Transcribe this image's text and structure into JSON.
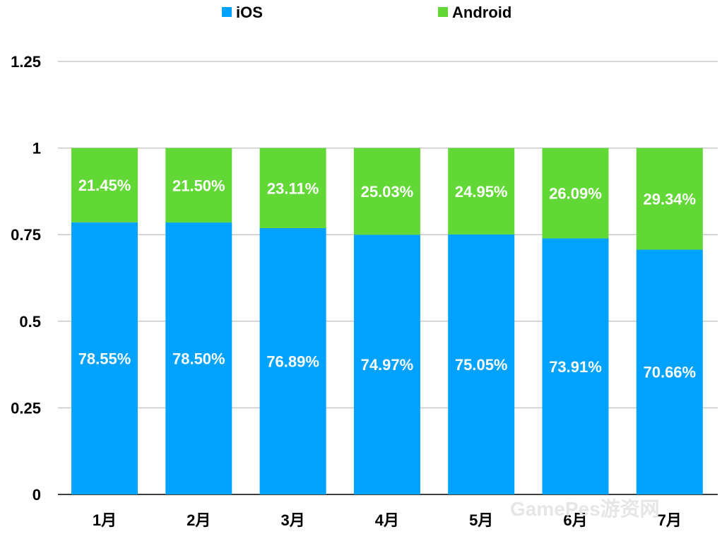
{
  "chart_data": {
    "type": "bar",
    "stacked": true,
    "categories": [
      "1月",
      "2月",
      "3月",
      "4月",
      "5月",
      "6月",
      "7月"
    ],
    "series": [
      {
        "name": "iOS",
        "color": "#00a2ff",
        "values": [
          0.7855,
          0.785,
          0.7689,
          0.7497,
          0.7505,
          0.7391,
          0.7066
        ],
        "labels": [
          "78.55%",
          "78.50%",
          "76.89%",
          "74.97%",
          "75.05%",
          "73.91%",
          "70.66%"
        ]
      },
      {
        "name": "Android",
        "color": "#62d836",
        "values": [
          0.2145,
          0.215,
          0.2311,
          0.2503,
          0.2495,
          0.2609,
          0.2934
        ],
        "labels": [
          "21.45%",
          "21.50%",
          "23.11%",
          "25.03%",
          "24.95%",
          "26.09%",
          "29.34%"
        ]
      }
    ],
    "yticks": [
      "0",
      "0.25",
      "0.5",
      "0.75",
      "1",
      "1.25"
    ],
    "ylim": [
      0,
      1.25
    ],
    "grid": true,
    "legend_position": "top-center",
    "watermark": "GamePes游资网"
  }
}
